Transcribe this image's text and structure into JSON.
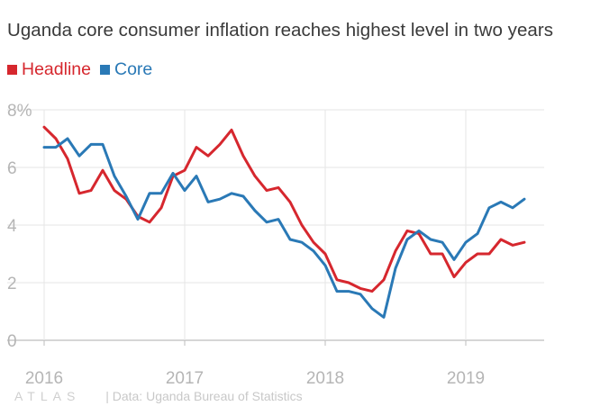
{
  "title": "Uganda core consumer inflation reaches highest level in two years",
  "footer": {
    "logo": "ATLAS",
    "source": "| Data: Uganda Bureau of Statistics"
  },
  "colors": {
    "headline": "#d6272e",
    "core": "#2a79b6",
    "grid": "#e6e6e6",
    "axis": "#bdbdbd",
    "tick": "#b5b5b5"
  },
  "chart_data": {
    "type": "line",
    "title": "Uganda core consumer inflation reaches highest level in two years",
    "xlabel": "",
    "ylabel": "",
    "ylim": [
      0,
      8
    ],
    "yticks": [
      "0",
      "2",
      "4",
      "6",
      "8%"
    ],
    "xticks": [
      "2016",
      "2017",
      "2018",
      "2019"
    ],
    "grid": true,
    "legend": "top-left",
    "x": [
      "2016-01",
      "2016-02",
      "2016-03",
      "2016-04",
      "2016-05",
      "2016-06",
      "2016-07",
      "2016-08",
      "2016-09",
      "2016-10",
      "2016-11",
      "2016-12",
      "2017-01",
      "2017-02",
      "2017-03",
      "2017-04",
      "2017-05",
      "2017-06",
      "2017-07",
      "2017-08",
      "2017-09",
      "2017-10",
      "2017-11",
      "2017-12",
      "2018-01",
      "2018-02",
      "2018-03",
      "2018-04",
      "2018-05",
      "2018-06",
      "2018-07",
      "2018-08",
      "2018-09",
      "2018-10",
      "2018-11",
      "2018-12",
      "2019-01",
      "2019-02",
      "2019-03",
      "2019-04",
      "2019-05",
      "2019-06"
    ],
    "series": [
      {
        "name": "Headline",
        "color": "#d6272e",
        "values": [
          7.4,
          7.0,
          6.3,
          5.1,
          5.2,
          5.9,
          5.2,
          4.9,
          4.3,
          4.1,
          4.6,
          5.7,
          5.9,
          6.7,
          6.4,
          6.8,
          7.3,
          6.4,
          5.7,
          5.2,
          5.3,
          4.8,
          4.0,
          3.4,
          3.0,
          2.1,
          2.0,
          1.8,
          1.7,
          2.1,
          3.1,
          3.8,
          3.7,
          3.0,
          3.0,
          2.2,
          2.7,
          3.0,
          3.0,
          3.5,
          3.3,
          3.4
        ]
      },
      {
        "name": "Core",
        "color": "#2a79b6",
        "values": [
          6.7,
          6.7,
          7.0,
          6.4,
          6.8,
          6.8,
          5.7,
          5.0,
          4.2,
          5.1,
          5.1,
          5.8,
          5.2,
          5.7,
          4.8,
          4.9,
          5.1,
          5.0,
          4.5,
          4.1,
          4.2,
          3.5,
          3.4,
          3.1,
          2.6,
          1.7,
          1.7,
          1.6,
          1.1,
          0.8,
          2.5,
          3.5,
          3.8,
          3.5,
          3.4,
          2.8,
          3.4,
          3.7,
          4.6,
          4.8,
          4.6,
          4.9
        ]
      }
    ]
  }
}
